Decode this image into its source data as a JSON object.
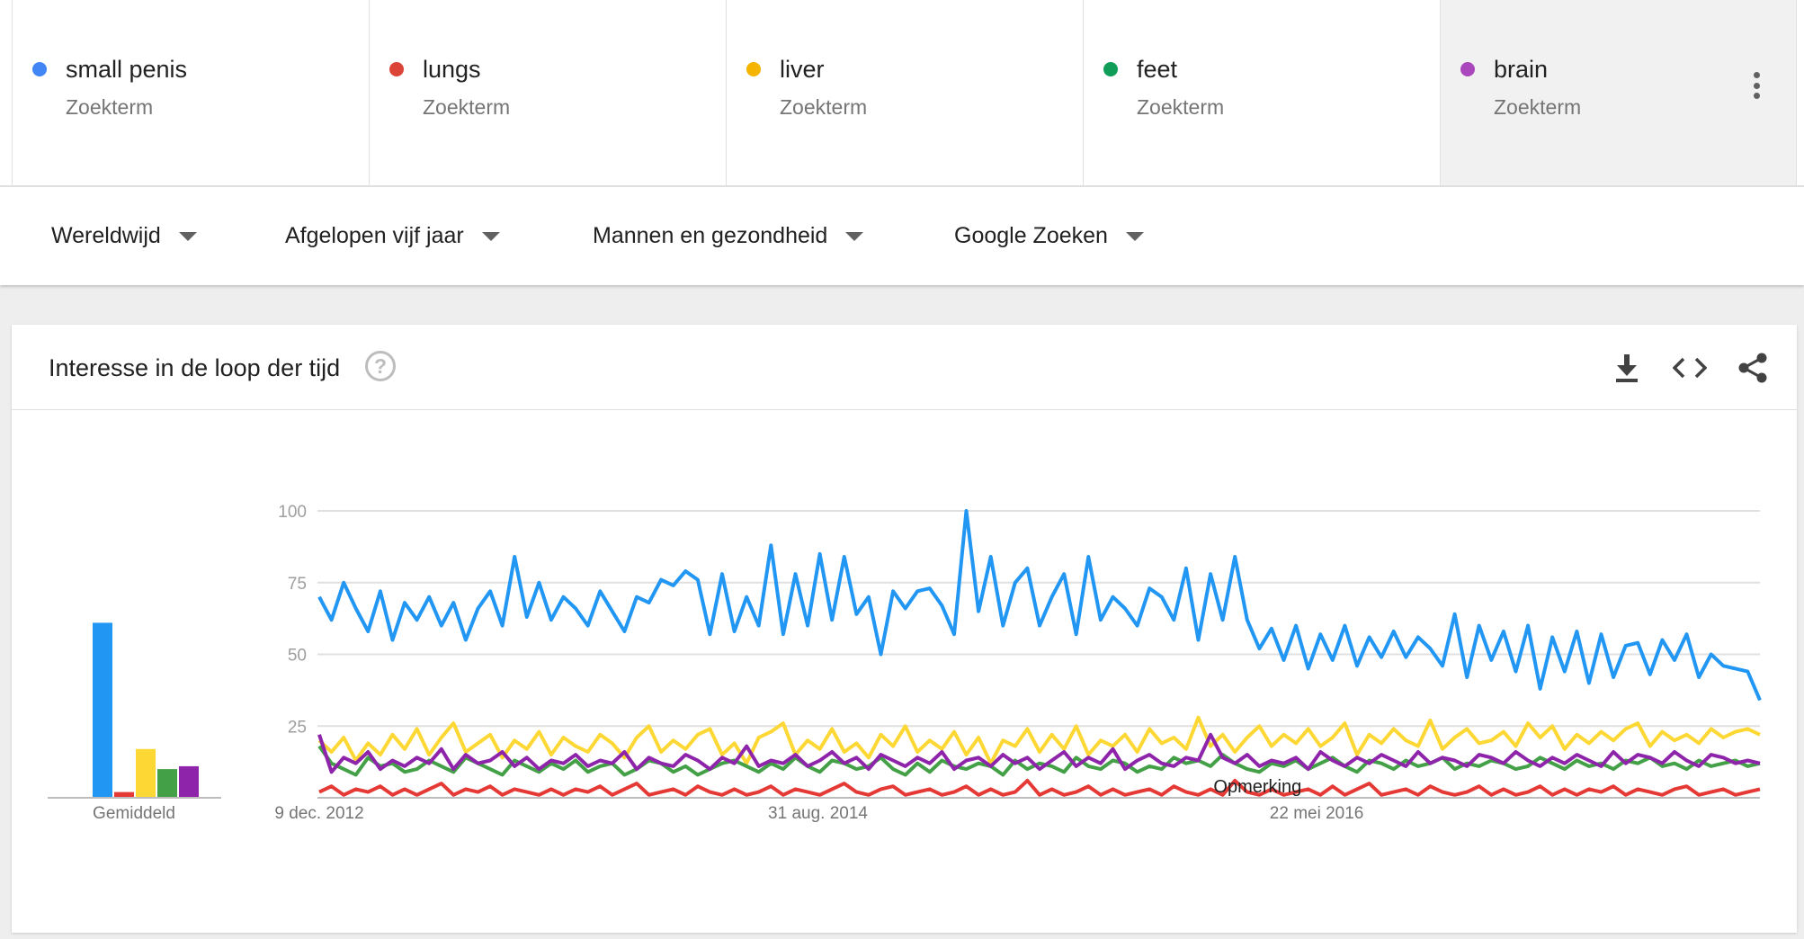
{
  "terms": [
    {
      "name": "small penis",
      "sub": "Zoekterm",
      "color": "#4285f4"
    },
    {
      "name": "lungs",
      "sub": "Zoekterm",
      "color": "#db4437"
    },
    {
      "name": "liver",
      "sub": "Zoekterm",
      "color": "#f4b400"
    },
    {
      "name": "feet",
      "sub": "Zoekterm",
      "color": "#0f9d58"
    },
    {
      "name": "brain",
      "sub": "Zoekterm",
      "color": "#ab47bc"
    }
  ],
  "filters": {
    "region": "Wereldwijd",
    "period": "Afgelopen vijf jaar",
    "category": "Mannen en gezondheid",
    "source": "Google Zoeken"
  },
  "panel": {
    "title": "Interesse in de loop der tijd",
    "help_icon": "help-icon",
    "action_icons": [
      "download-icon",
      "embed-icon",
      "share-icon"
    ]
  },
  "chart_data": [
    {
      "type": "bar",
      "xlabel": "Gemiddeld",
      "ylim": [
        0,
        100
      ],
      "categories": [
        "small penis",
        "lungs",
        "liver",
        "feet",
        "brain"
      ],
      "values": [
        61,
        2,
        17,
        10,
        11
      ],
      "colors": [
        "#2196f3",
        "#e53935",
        "#fdd835",
        "#43a047",
        "#8e24aa"
      ]
    },
    {
      "type": "line",
      "ylim": [
        0,
        100
      ],
      "yticks": [
        25,
        50,
        75,
        100
      ],
      "x_start": "9 dec. 2012",
      "x_end": "2 dec. 2017",
      "x_ticks": [
        {
          "date": "2012-12-09",
          "label": "9 dec. 2012"
        },
        {
          "date": "2014-08-31",
          "label": "31 aug. 2014"
        },
        {
          "date": "2016-05-22",
          "label": "22 mei 2016"
        }
      ],
      "annotation": {
        "label": "Opmerking",
        "date": "2016-03-06"
      },
      "series": [
        {
          "name": "small penis",
          "color": "#2196f3",
          "values": [
            70,
            62,
            75,
            66,
            58,
            72,
            55,
            68,
            62,
            70,
            60,
            68,
            55,
            66,
            72,
            60,
            84,
            63,
            75,
            62,
            70,
            66,
            60,
            72,
            65,
            58,
            70,
            68,
            76,
            74,
            79,
            76,
            57,
            78,
            58,
            70,
            60,
            88,
            57,
            78,
            60,
            85,
            62,
            84,
            64,
            70,
            50,
            72,
            66,
            72,
            73,
            67,
            57,
            100,
            65,
            84,
            60,
            75,
            80,
            60,
            70,
            78,
            57,
            84,
            62,
            70,
            66,
            60,
            73,
            70,
            62,
            80,
            55,
            78,
            62,
            84,
            62,
            52,
            59,
            48,
            60,
            45,
            57,
            48,
            60,
            46,
            56,
            49,
            58,
            49,
            56,
            52,
            46,
            64,
            42,
            60,
            48,
            58,
            44,
            60,
            38,
            56,
            44,
            58,
            40,
            57,
            42,
            53,
            54,
            43,
            55,
            48,
            57,
            42,
            50,
            46,
            45,
            44,
            34
          ]
        },
        {
          "name": "lungs",
          "color": "#e53935",
          "values": [
            2,
            4,
            1,
            3,
            2,
            4,
            1,
            3,
            1,
            3,
            5,
            1,
            3,
            2,
            4,
            1,
            3,
            2,
            1,
            3,
            1,
            3,
            2,
            4,
            1,
            3,
            5,
            1,
            2,
            3,
            1,
            4,
            2,
            1,
            3,
            1,
            2,
            4,
            1,
            3,
            2,
            1,
            3,
            5,
            2,
            1,
            3,
            4,
            1,
            2,
            3,
            1,
            2,
            4,
            1,
            3,
            1,
            2,
            6,
            1,
            3,
            1,
            2,
            4,
            1,
            3,
            1,
            2,
            3,
            1,
            4,
            2,
            1,
            3,
            1,
            6,
            2,
            1,
            3,
            1,
            2,
            3,
            1,
            4,
            1,
            3,
            5,
            1,
            2,
            3,
            1,
            4,
            2,
            1,
            2,
            4,
            1,
            3,
            1,
            2,
            4,
            1,
            3,
            1,
            3,
            2,
            4,
            1,
            3,
            2,
            1,
            3,
            4,
            1,
            2,
            3,
            1,
            2,
            3
          ]
        },
        {
          "name": "liver",
          "color": "#fdd835",
          "values": [
            20,
            16,
            21,
            13,
            19,
            15,
            22,
            17,
            24,
            15,
            21,
            26,
            16,
            19,
            22,
            14,
            20,
            17,
            23,
            15,
            21,
            18,
            16,
            22,
            19,
            14,
            21,
            25,
            16,
            20,
            17,
            22,
            24,
            15,
            19,
            12,
            21,
            23,
            26,
            15,
            20,
            17,
            24,
            16,
            19,
            14,
            22,
            18,
            25,
            16,
            20,
            17,
            23,
            15,
            21,
            12,
            20,
            18,
            24,
            16,
            22,
            17,
            25,
            15,
            20,
            18,
            22,
            16,
            24,
            19,
            21,
            17,
            28,
            18,
            22,
            16,
            21,
            25,
            18,
            22,
            19,
            24,
            18,
            21,
            26,
            15,
            22,
            19,
            24,
            20,
            18,
            27,
            17,
            21,
            24,
            19,
            20,
            23,
            18,
            26,
            21,
            25,
            17,
            22,
            19,
            23,
            20,
            24,
            26,
            18,
            23,
            20,
            22,
            19,
            24,
            21,
            23,
            24,
            22
          ]
        },
        {
          "name": "feet",
          "color": "#43a047",
          "values": [
            18,
            12,
            10,
            8,
            14,
            11,
            12,
            9,
            10,
            13,
            11,
            9,
            14,
            12,
            10,
            8,
            13,
            11,
            9,
            12,
            10,
            13,
            9,
            11,
            12,
            8,
            10,
            13,
            12,
            9,
            11,
            8,
            10,
            12,
            13,
            11,
            9,
            12,
            10,
            14,
            11,
            9,
            13,
            12,
            10,
            11,
            14,
            10,
            8,
            12,
            9,
            13,
            11,
            10,
            12,
            11,
            8,
            13,
            10,
            12,
            11,
            9,
            14,
            11,
            10,
            13,
            12,
            9,
            11,
            10,
            14,
            12,
            13,
            11,
            15,
            12,
            10,
            9,
            12,
            11,
            13,
            10,
            12,
            14,
            11,
            9,
            13,
            12,
            10,
            13,
            11,
            12,
            14,
            10,
            12,
            11,
            13,
            12,
            10,
            11,
            14,
            12,
            10,
            13,
            11,
            12,
            10,
            13,
            12,
            14,
            11,
            12,
            10,
            13,
            11,
            12,
            13,
            11,
            12
          ]
        },
        {
          "name": "brain",
          "color": "#8e24aa",
          "values": [
            22,
            9,
            14,
            12,
            16,
            10,
            13,
            11,
            14,
            12,
            17,
            10,
            15,
            12,
            13,
            16,
            11,
            14,
            10,
            13,
            12,
            15,
            11,
            13,
            12,
            16,
            10,
            14,
            12,
            11,
            15,
            13,
            10,
            14,
            12,
            18,
            11,
            13,
            12,
            15,
            11,
            13,
            16,
            12,
            14,
            10,
            15,
            13,
            11,
            14,
            12,
            16,
            10,
            13,
            14,
            11,
            15,
            12,
            14,
            10,
            13,
            16,
            11,
            14,
            12,
            17,
            10,
            13,
            15,
            12,
            11,
            14,
            13,
            22,
            14,
            12,
            15,
            11,
            13,
            12,
            14,
            10,
            16,
            13,
            11,
            14,
            12,
            15,
            13,
            11,
            16,
            12,
            14,
            13,
            11,
            15,
            14,
            12,
            16,
            13,
            11,
            14,
            12,
            15,
            13,
            11,
            16,
            12,
            15,
            14,
            12,
            16,
            13,
            11,
            15,
            14,
            12,
            13,
            12
          ]
        }
      ]
    }
  ]
}
